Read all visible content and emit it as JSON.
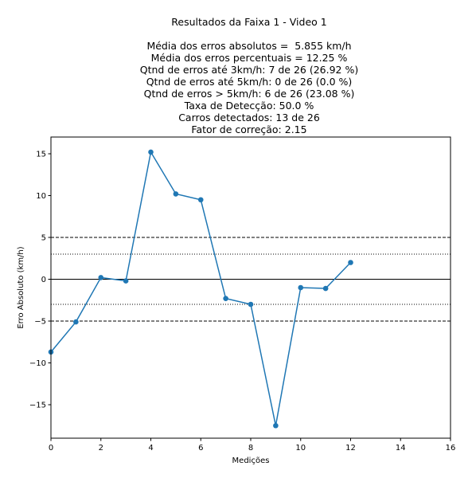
{
  "chart_data": {
    "type": "line",
    "title": "Resultados da Faixa 1 - Video 1",
    "subtitle_lines": [
      "Média dos erros absolutos =  5.855 km/h",
      "Média dos erros percentuais = 12.25 %",
      "Qtnd de erros até 3km/h: 7 de 26 (26.92 %)",
      "Qtnd de erros até 5km/h: 0 de 26 (0.0 %)",
      "Qtnd de erros > 5km/h: 6 de 26 (23.08 %)",
      "Taxa de Detecção: 50.0 %",
      "Carros detectados: 13 de 26",
      "Fator de correção: 2.15"
    ],
    "xlabel": "Medições",
    "ylabel": "Erro Absoluto (km/h)",
    "xlim": [
      0,
      16
    ],
    "ylim": [
      -19,
      17
    ],
    "xticks": [
      0,
      2,
      4,
      6,
      8,
      10,
      12,
      14,
      16
    ],
    "yticks": [
      -15,
      -10,
      -5,
      0,
      5,
      10,
      15
    ],
    "ytick_labels": [
      "−15",
      "−10",
      "−5",
      "0",
      "5",
      "10",
      "15"
    ],
    "grid": false,
    "series": [
      {
        "color": "#1f77b4",
        "marker": "circle",
        "x": [
          0,
          1,
          2,
          3,
          4,
          5,
          6,
          7,
          8,
          9,
          10,
          11,
          12
        ],
        "y": [
          -8.7,
          -5.1,
          0.2,
          -0.2,
          15.2,
          10.2,
          9.5,
          -2.3,
          -3.0,
          -17.5,
          -1.0,
          -1.1,
          2.0
        ]
      }
    ],
    "reference_lines": [
      {
        "y": 5,
        "style": "dashed",
        "color": "#000000"
      },
      {
        "y": 3,
        "style": "dotted",
        "color": "#000000"
      },
      {
        "y": 0,
        "style": "solid",
        "color": "#000000"
      },
      {
        "y": -3,
        "style": "dotted",
        "color": "#000000"
      },
      {
        "y": -5,
        "style": "dashed",
        "color": "#000000"
      }
    ]
  }
}
